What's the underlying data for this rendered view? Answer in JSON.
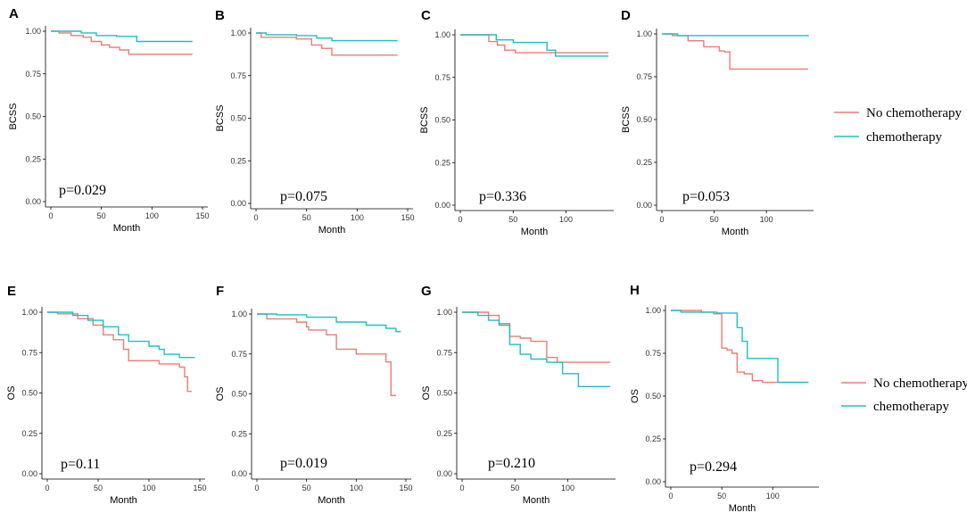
{
  "colors": {
    "no_chemo": "#ED7C77",
    "chemo": "#1FBFC4"
  },
  "legends": [
    {
      "entries": [
        {
          "label": "No chemotherapy",
          "series": "no_chemo"
        },
        {
          "label": "chemotherapy",
          "series": "chemo"
        }
      ]
    },
    {
      "entries": [
        {
          "label": "No chemotherapy",
          "series": "no_chemo"
        },
        {
          "label": "chemotherapy",
          "series": "chemo"
        }
      ]
    }
  ],
  "chart_data": [
    {
      "type": "line",
      "panel": "A",
      "ylabel": "BCSS",
      "xlabel": "Month",
      "pvalue": "p=0.029",
      "xlim": [
        0,
        150
      ],
      "ylim": [
        0,
        1
      ],
      "xticks": [
        "0",
        "50",
        "100",
        "150"
      ],
      "yticks": [
        "0.00",
        "0.25",
        "0.50",
        "0.75",
        "1.00"
      ],
      "series": [
        {
          "name": "No chemotherapy",
          "key": "no_chemo",
          "points": [
            [
              0,
              1
            ],
            [
              8,
              0.99
            ],
            [
              20,
              0.975
            ],
            [
              32,
              0.965
            ],
            [
              40,
              0.94
            ],
            [
              50,
              0.92
            ],
            [
              58,
              0.905
            ],
            [
              68,
              0.89
            ],
            [
              77,
              0.865
            ],
            [
              140,
              0.865
            ]
          ]
        },
        {
          "name": "chemotherapy",
          "key": "chemo",
          "points": [
            [
              0,
              1
            ],
            [
              30,
              0.99
            ],
            [
              45,
              0.975
            ],
            [
              65,
              0.97
            ],
            [
              85,
              0.94
            ],
            [
              140,
              0.94
            ]
          ]
        }
      ]
    },
    {
      "type": "line",
      "panel": "B",
      "ylabel": "BCSS",
      "xlabel": "Month",
      "pvalue": "p=0.075",
      "xlim": [
        0,
        150
      ],
      "ylim": [
        0,
        1
      ],
      "xticks": [
        "0",
        "50",
        "100",
        "150"
      ],
      "yticks": [
        "0.00",
        "0.25",
        "0.50",
        "0.75",
        "1.00"
      ],
      "series": [
        {
          "name": "No chemotherapy",
          "key": "no_chemo",
          "points": [
            [
              0,
              1
            ],
            [
              5,
              0.975
            ],
            [
              40,
              0.965
            ],
            [
              55,
              0.93
            ],
            [
              65,
              0.91
            ],
            [
              75,
              0.87
            ],
            [
              140,
              0.87
            ]
          ]
        },
        {
          "name": "chemotherapy",
          "key": "chemo",
          "points": [
            [
              0,
              1
            ],
            [
              10,
              0.99
            ],
            [
              40,
              0.985
            ],
            [
              60,
              0.97
            ],
            [
              75,
              0.955
            ],
            [
              140,
              0.955
            ]
          ]
        }
      ]
    },
    {
      "type": "line",
      "panel": "C",
      "ylabel": "BCSS",
      "xlabel": "Month",
      "pvalue": "p=0.336",
      "xlim": [
        0,
        140
      ],
      "ylim": [
        0,
        1
      ],
      "xticks": [
        "0",
        "50",
        "100"
      ],
      "yticks": [
        "0.00",
        "0.25",
        "0.50",
        "0.75",
        "1.00"
      ],
      "series": [
        {
          "name": "No chemotherapy",
          "key": "no_chemo",
          "points": [
            [
              0,
              1
            ],
            [
              22,
              1
            ],
            [
              27,
              0.96
            ],
            [
              35,
              0.94
            ],
            [
              42,
              0.91
            ],
            [
              52,
              0.895
            ],
            [
              140,
              0.895
            ]
          ]
        },
        {
          "name": "chemotherapy",
          "key": "chemo",
          "points": [
            [
              0,
              1
            ],
            [
              28,
              1
            ],
            [
              34,
              0.97
            ],
            [
              50,
              0.955
            ],
            [
              70,
              0.955
            ],
            [
              82,
              0.91
            ],
            [
              90,
              0.875
            ],
            [
              140,
              0.875
            ]
          ]
        }
      ]
    },
    {
      "type": "line",
      "panel": "D",
      "ylabel": "BCSS",
      "xlabel": "Month",
      "pvalue": "p=0.053",
      "xlim": [
        0,
        140
      ],
      "ylim": [
        0,
        1
      ],
      "xticks": [
        "0",
        "50",
        "100"
      ],
      "yticks": [
        "0.00",
        "0.25",
        "0.50",
        "0.75",
        "1.00"
      ],
      "series": [
        {
          "name": "No chemotherapy",
          "key": "no_chemo",
          "points": [
            [
              0,
              1
            ],
            [
              10,
              0.99
            ],
            [
              25,
              0.96
            ],
            [
              40,
              0.925
            ],
            [
              55,
              0.9
            ],
            [
              60,
              0.895
            ],
            [
              65,
              0.795
            ],
            [
              140,
              0.795
            ]
          ]
        },
        {
          "name": "chemotherapy",
          "key": "chemo",
          "points": [
            [
              0,
              1
            ],
            [
              15,
              0.99
            ],
            [
              140,
              0.985
            ]
          ]
        }
      ]
    },
    {
      "type": "line",
      "panel": "E",
      "ylabel": "OS",
      "xlabel": "Month",
      "pvalue": "p=0.11",
      "xlim": [
        0,
        150
      ],
      "ylim": [
        0,
        1
      ],
      "xticks": [
        "0",
        "50",
        "100",
        "150"
      ],
      "yticks": [
        "0.00",
        "0.25",
        "0.50",
        "0.75",
        "1.00"
      ],
      "series": [
        {
          "name": "No chemotherapy",
          "key": "no_chemo",
          "points": [
            [
              0,
              1
            ],
            [
              10,
              0.99
            ],
            [
              30,
              0.96
            ],
            [
              45,
              0.92
            ],
            [
              55,
              0.86
            ],
            [
              65,
              0.83
            ],
            [
              75,
              0.77
            ],
            [
              80,
              0.7
            ],
            [
              90,
              0.7
            ],
            [
              110,
              0.68
            ],
            [
              130,
              0.66
            ],
            [
              135,
              0.6
            ],
            [
              138,
              0.51
            ],
            [
              142,
              0.51
            ]
          ]
        },
        {
          "name": "chemotherapy",
          "key": "chemo",
          "points": [
            [
              0,
              1
            ],
            [
              25,
              0.98
            ],
            [
              40,
              0.95
            ],
            [
              55,
              0.91
            ],
            [
              70,
              0.86
            ],
            [
              80,
              0.82
            ],
            [
              100,
              0.79
            ],
            [
              110,
              0.77
            ],
            [
              115,
              0.74
            ],
            [
              130,
              0.72
            ],
            [
              145,
              0.72
            ]
          ]
        }
      ]
    },
    {
      "type": "line",
      "panel": "F",
      "ylabel": "OS",
      "xlabel": "Month",
      "pvalue": "p=0.019",
      "xlim": [
        0,
        150
      ],
      "ylim": [
        0,
        1
      ],
      "xticks": [
        "0",
        "50",
        "100",
        "150"
      ],
      "yticks": [
        "0.00",
        "0.25",
        "0.50",
        "0.75",
        "1.00"
      ],
      "series": [
        {
          "name": "No chemotherapy",
          "key": "no_chemo",
          "points": [
            [
              0,
              1
            ],
            [
              10,
              0.97
            ],
            [
              40,
              0.95
            ],
            [
              50,
              0.92
            ],
            [
              52,
              0.9
            ],
            [
              70,
              0.87
            ],
            [
              80,
              0.78
            ],
            [
              100,
              0.75
            ],
            [
              130,
              0.7
            ],
            [
              135,
              0.49
            ],
            [
              140,
              0.49
            ]
          ]
        },
        {
          "name": "chemotherapy",
          "key": "chemo",
          "points": [
            [
              0,
              1
            ],
            [
              20,
              0.995
            ],
            [
              50,
              0.98
            ],
            [
              80,
              0.95
            ],
            [
              110,
              0.93
            ],
            [
              130,
              0.91
            ],
            [
              140,
              0.89
            ],
            [
              145,
              0.89
            ]
          ]
        }
      ]
    },
    {
      "type": "line",
      "panel": "G",
      "ylabel": "OS",
      "xlabel": "Month",
      "pvalue": "p=0.210",
      "xlim": [
        0,
        140
      ],
      "ylim": [
        0,
        1
      ],
      "xticks": [
        "0",
        "50",
        "100"
      ],
      "yticks": [
        "0.00",
        "0.25",
        "0.50",
        "0.75",
        "1.00"
      ],
      "series": [
        {
          "name": "No chemotherapy",
          "key": "no_chemo",
          "points": [
            [
              0,
              1
            ],
            [
              20,
              1
            ],
            [
              25,
              0.98
            ],
            [
              35,
              0.93
            ],
            [
              45,
              0.85
            ],
            [
              55,
              0.84
            ],
            [
              65,
              0.82
            ],
            [
              75,
              0.82
            ],
            [
              80,
              0.72
            ],
            [
              90,
              0.69
            ],
            [
              140,
              0.69
            ]
          ]
        },
        {
          "name": "chemotherapy",
          "key": "chemo",
          "points": [
            [
              0,
              1
            ],
            [
              15,
              0.98
            ],
            [
              25,
              0.95
            ],
            [
              35,
              0.92
            ],
            [
              45,
              0.8
            ],
            [
              55,
              0.74
            ],
            [
              65,
              0.71
            ],
            [
              80,
              0.69
            ],
            [
              95,
              0.62
            ],
            [
              110,
              0.54
            ],
            [
              140,
              0.54
            ]
          ]
        }
      ]
    },
    {
      "type": "line",
      "panel": "H",
      "ylabel": "OS",
      "xlabel": "Month",
      "pvalue": "p=0.294",
      "xlim": [
        0,
        140
      ],
      "ylim": [
        0,
        1
      ],
      "xticks": [
        "0",
        "50",
        "100"
      ],
      "yticks": [
        "0.00",
        "0.25",
        "0.50",
        "0.75",
        "1.00"
      ],
      "series": [
        {
          "name": "No chemotherapy",
          "key": "no_chemo",
          "points": [
            [
              0,
              1
            ],
            [
              30,
              0.99
            ],
            [
              42,
              0.98
            ],
            [
              50,
              0.78
            ],
            [
              55,
              0.77
            ],
            [
              60,
              0.75
            ],
            [
              65,
              0.64
            ],
            [
              72,
              0.63
            ],
            [
              80,
              0.59
            ],
            [
              90,
              0.58
            ],
            [
              135,
              0.58
            ]
          ]
        },
        {
          "name": "chemotherapy",
          "key": "chemo",
          "points": [
            [
              0,
              1
            ],
            [
              10,
              0.99
            ],
            [
              45,
              0.985
            ],
            [
              60,
              0.985
            ],
            [
              65,
              0.9
            ],
            [
              70,
              0.82
            ],
            [
              75,
              0.72
            ],
            [
              105,
              0.58
            ],
            [
              135,
              0.58
            ]
          ]
        }
      ]
    }
  ]
}
